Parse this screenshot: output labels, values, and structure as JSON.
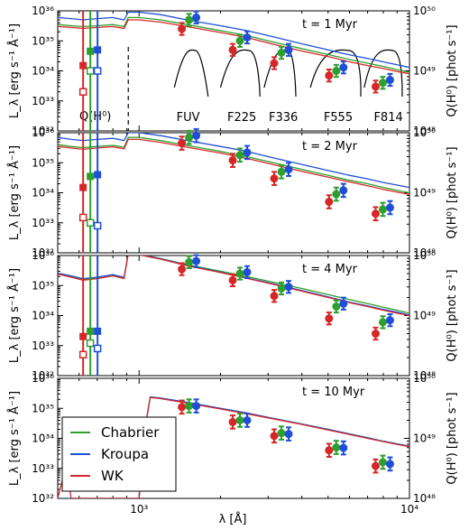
{
  "chart_data": {
    "type": "line",
    "x_scale": "log",
    "y_scale": "log",
    "xlim": [
      500,
      10000
    ],
    "ylim": [
      1e+32,
      1e+36
    ],
    "right_ylim": [
      1e+48,
      1e+50
    ],
    "xlabel": "λ [Å]",
    "ylabel": "L_λ [erg s⁻¹ Å⁻¹]",
    "right_ylabel": "Q(H⁰) [phot s⁻¹]",
    "x_tick_labels": [
      "10³",
      "10⁴"
    ],
    "y_tick_labels": [
      "10³²",
      "10³³",
      "10³⁴",
      "10³⁵",
      "10³⁶"
    ],
    "right_tick_labels": [
      "10⁴⁸",
      "10⁴⁹",
      "10⁵⁰"
    ],
    "colors": {
      "Chabrier": "#2ca02c",
      "Kroupa": "#1f4fd6",
      "WK": "#d62728"
    },
    "legend": {
      "placement": "lower-left",
      "entries": [
        "Chabrier",
        "Kroupa",
        "WK"
      ]
    },
    "qh_label": "Q(H⁰)",
    "band_names": [
      "FUV",
      "F225",
      "F336",
      "F555",
      "F814"
    ],
    "band_centers": [
      1530,
      2360,
      3360,
      5360,
      7970
    ],
    "lyman_limit": 912,
    "panels": [
      {
        "title": "t = 1 Myr",
        "show_bands": true,
        "spectra": [
          {
            "name": "Chabrier",
            "x": [
              500,
              560,
              620,
              700,
              800,
              880,
              912,
              1000,
              1200,
              1500,
              2000,
              2500,
              3000,
              4000,
              5000,
              6000,
              7000,
              8000,
              9000,
              10000
            ],
            "y": [
              3.5e+35,
              3.2e+35,
              3e+35,
              3.2e+35,
              3.5e+35,
              3e+35,
              6e+35,
              6e+35,
              5e+35,
              3.5e+35,
              2.2e+35,
              1.5e+35,
              1e+35,
              5.5e+34,
              3.5e+34,
              2.4e+34,
              1.8e+34,
              1.4e+34,
              1.1e+34,
              9e+33
            ]
          },
          {
            "name": "Kroupa",
            "x": [
              500,
              560,
              620,
              700,
              800,
              880,
              912,
              1000,
              1200,
              1500,
              2000,
              2500,
              3000,
              4000,
              5000,
              6000,
              7000,
              8000,
              9000,
              10000
            ],
            "y": [
              6e+35,
              5.5e+35,
              5e+35,
              5.5e+35,
              6e+35,
              5e+35,
              9e+35,
              9e+35,
              7.5e+35,
              5e+35,
              3.2e+35,
              2.2e+35,
              1.5e+35,
              8e+34,
              5e+34,
              3.4e+34,
              2.6e+34,
              2e+34,
              1.6e+34,
              1.3e+34
            ]
          },
          {
            "name": "WK",
            "x": [
              500,
              560,
              620,
              700,
              800,
              880,
              912,
              1000,
              1200,
              1500,
              2000,
              2500,
              3000,
              4000,
              5000,
              6000,
              7000,
              8000,
              9000,
              10000
            ],
            "y": [
              3e+35,
              2.8e+35,
              2.6e+35,
              2.8e+35,
              3e+35,
              2.6e+35,
              5e+35,
              5e+35,
              4.2e+35,
              3e+35,
              1.9e+35,
              1.3e+35,
              8.5e+34,
              4.6e+34,
              3e+34,
              2e+34,
              1.5e+34,
              1.2e+34,
              9.5e+33,
              8e+33
            ]
          }
        ],
        "band_points": [
          {
            "name": "WK",
            "y": [
              2.5e+35,
              5e+34,
              1.8e+34,
              7e+33,
              3e+33
            ],
            "err": [
              0.2,
              0.2,
              0.2,
              0.2,
              0.2
            ]
          },
          {
            "name": "Chabrier",
            "y": [
              5e+35,
              1e+35,
              4e+34,
              1e+34,
              4e+33
            ],
            "err": [
              0.2,
              0.2,
              0.2,
              0.2,
              0.2
            ]
          },
          {
            "name": "Kroupa",
            "y": [
              6e+35,
              1.3e+35,
              5e+34,
              1.3e+34,
              5e+33
            ],
            "err": [
              0.2,
              0.2,
              0.2,
              0.2,
              0.2
            ]
          }
        ],
        "q_points": [
          {
            "name": "WK",
            "filled": 1.5e+34,
            "open": 2e+33,
            "err_lo": 1e+32,
            "err_hi": 1e+36
          },
          {
            "name": "Chabrier",
            "filled": 4.5e+34,
            "open": 1e+34,
            "err_lo": 1e+32,
            "err_hi": 1e+36
          },
          {
            "name": "Kroupa",
            "filled": 5e+34,
            "open": 1e+34,
            "err_lo": 1e+32,
            "err_hi": 1e+36
          }
        ]
      },
      {
        "title": "t = 2 Myr",
        "show_bands": false,
        "spectra": [
          {
            "name": "Chabrier",
            "x": [
              500,
              560,
              620,
              700,
              800,
              880,
              912,
              1000,
              1200,
              1500,
              2000,
              2500,
              3000,
              4000,
              5000,
              6000,
              7000,
              8000,
              9000,
              10000
            ],
            "y": [
              4e+35,
              3.5e+35,
              3.2e+35,
              3.5e+35,
              3.8e+35,
              3.3e+35,
              7e+35,
              7e+35,
              5.5e+35,
              3.8e+35,
              2.4e+35,
              1.6e+35,
              1.1e+35,
              6e+34,
              3.8e+34,
              2.6e+34,
              2e+34,
              1.5e+34,
              1.2e+34,
              1e+34
            ]
          },
          {
            "name": "Kroupa",
            "x": [
              500,
              560,
              620,
              700,
              800,
              880,
              912,
              1000,
              1200,
              1500,
              2000,
              2500,
              3000,
              4000,
              5000,
              6000,
              7000,
              8000,
              9000,
              10000
            ],
            "y": [
              7e+35,
              6e+35,
              5.5e+35,
              6e+35,
              6.5e+35,
              5.5e+35,
              1e+36,
              1e+36,
              8e+35,
              5.5e+35,
              3.5e+35,
              2.4e+35,
              1.6e+35,
              8.8e+34,
              5.5e+34,
              3.8e+34,
              2.9e+34,
              2.2e+34,
              1.8e+34,
              1.5e+34
            ]
          },
          {
            "name": "WK",
            "x": [
              500,
              560,
              620,
              700,
              800,
              880,
              912,
              1000,
              1200,
              1500,
              2000,
              2500,
              3000,
              4000,
              5000,
              6000,
              7000,
              8000,
              9000,
              10000
            ],
            "y": [
              3.5e+35,
              3.1e+35,
              2.8e+35,
              3.1e+35,
              3.4e+35,
              2.9e+35,
              6e+35,
              6e+35,
              4.8e+35,
              3.3e+35,
              2.1e+35,
              1.4e+35,
              9.5e+34,
              5.2e+34,
              3.3e+34,
              2.3e+34,
              1.7e+34,
              1.3e+34,
              1.05e+34,
              8.8e+33
            ]
          }
        ],
        "band_points": [
          {
            "name": "WK",
            "y": [
              4.5e+35,
              1.2e+35,
              3e+34,
              5e+33,
              2e+33
            ],
            "err": [
              0.22,
              0.22,
              0.22,
              0.22,
              0.22
            ]
          },
          {
            "name": "Chabrier",
            "y": [
              7e+35,
              1.8e+35,
              5e+34,
              9e+33,
              2.8e+33
            ],
            "err": [
              0.22,
              0.22,
              0.22,
              0.22,
              0.22
            ]
          },
          {
            "name": "Kroupa",
            "y": [
              8e+35,
              2.2e+35,
              6e+34,
              1.2e+34,
              3.2e+33
            ],
            "err": [
              0.22,
              0.22,
              0.22,
              0.22,
              0.22
            ]
          }
        ],
        "q_points": [
          {
            "name": "WK",
            "filled": 1.5e+34,
            "open": 1.5e+33,
            "err_lo": 1e+32,
            "err_hi": 1e+36
          },
          {
            "name": "Chabrier",
            "filled": 3.5e+34,
            "open": 1e+33,
            "err_lo": 1e+32,
            "err_hi": 1e+36
          },
          {
            "name": "Kroupa",
            "filled": 4e+34,
            "open": 8e+32,
            "err_lo": 1e+32,
            "err_hi": 1e+36
          }
        ]
      },
      {
        "title": "t = 4 Myr",
        "show_bands": false,
        "spectra": [
          {
            "name": "Chabrier",
            "x": [
              500,
              560,
              620,
              700,
              800,
              880,
              912,
              1000,
              1200,
              1500,
              2000,
              2500,
              3000,
              4000,
              5000,
              6000,
              7000,
              8000,
              9000,
              10000
            ],
            "y": [
              2.5e+35,
              2e+35,
              1.6e+35,
              1.8e+35,
              2.2e+35,
              1.8e+35,
              1.2e+36,
              1.1e+36,
              8e+35,
              5e+35,
              3e+35,
              2e+35,
              1.4e+35,
              8e+34,
              5e+34,
              3.4e+34,
              2.5e+34,
              1.9e+34,
              1.5e+34,
              1.2e+34
            ]
          },
          {
            "name": "Kroupa",
            "x": [
              500,
              560,
              620,
              700,
              800,
              880,
              912,
              1000,
              1200,
              1500,
              2000,
              2500,
              3000,
              4000,
              5000,
              6000,
              7000,
              8000,
              9000,
              10000
            ],
            "y": [
              2.6e+35,
              2.1e+35,
              1.7e+35,
              1.9e+35,
              2.3e+35,
              1.9e+35,
              1.2e+36,
              1.1e+36,
              7.8e+35,
              4.8e+35,
              2.8e+35,
              1.8e+35,
              1.25e+35,
              6.8e+34,
              4.2e+34,
              2.8e+34,
              2.1e+34,
              1.6e+34,
              1.3e+34,
              1.05e+34
            ]
          },
          {
            "name": "WK",
            "x": [
              500,
              560,
              620,
              700,
              800,
              880,
              912,
              1000,
              1200,
              1500,
              2000,
              2500,
              3000,
              4000,
              5000,
              6000,
              7000,
              8000,
              9000,
              10000
            ],
            "y": [
              2.4e+35,
              1.9e+35,
              1.5e+35,
              1.7e+35,
              2.1e+35,
              1.7e+35,
              1.15e+36,
              1.05e+36,
              7.6e+35,
              4.6e+35,
              2.7e+35,
              1.75e+35,
              1.2e+35,
              6.5e+34,
              4e+34,
              2.7e+34,
              2e+34,
              1.5e+34,
              1.2e+34,
              1e+34
            ]
          }
        ],
        "band_points": [
          {
            "name": "WK",
            "y": [
              3.5e+35,
              1.5e+35,
              4.5e+34,
              8e+33,
              2.5e+33
            ],
            "err": [
              0.2,
              0.2,
              0.2,
              0.2,
              0.2
            ]
          },
          {
            "name": "Chabrier",
            "y": [
              6e+35,
              2.5e+35,
              8e+34,
              2e+34,
              6e+33
            ],
            "err": [
              0.2,
              0.2,
              0.2,
              0.2,
              0.2
            ]
          },
          {
            "name": "Kroupa",
            "y": [
              6.5e+35,
              2.8e+35,
              9e+34,
              2.5e+34,
              7e+33
            ],
            "err": [
              0.2,
              0.2,
              0.2,
              0.2,
              0.2
            ]
          }
        ],
        "q_points": [
          {
            "name": "WK",
            "filled": 2e+33,
            "open": 5e+32,
            "err_lo": 1e+32,
            "err_hi": 1e+36
          },
          {
            "name": "Chabrier",
            "filled": 3e+33,
            "open": 1.2e+33,
            "err_lo": 1e+32,
            "err_hi": 1e+36
          },
          {
            "name": "Kroupa",
            "filled": 3e+33,
            "open": 8e+32,
            "err_lo": 1e+32,
            "err_hi": 1e+36
          }
        ]
      },
      {
        "title": "t = 10 Myr",
        "show_bands": false,
        "spectra": [
          {
            "name": "Chabrier",
            "x": [
              500,
              650,
              800,
              912,
              1000,
              1050,
              1100,
              1200,
              1500,
              2000,
              2500,
              3000,
              4000,
              5000,
              6000,
              7000,
              8000,
              9000,
              10000
            ],
            "y": [
              1e+32,
              1e+32,
              1e+32,
              1e+32,
              1e+32,
              2e+34,
              2.4e+35,
              2.2e+35,
              1.6e+35,
              1e+35,
              7e+34,
              5e+34,
              3e+34,
              2e+34,
              1.4e+34,
              1.05e+34,
              8e+33,
              6.5e+33,
              5.5e+33
            ]
          },
          {
            "name": "Kroupa",
            "x": [
              500,
              650,
              800,
              912,
              1000,
              1050,
              1100,
              1200,
              1500,
              2000,
              2500,
              3000,
              4000,
              5000,
              6000,
              7000,
              8000,
              9000,
              10000
            ],
            "y": [
              1e+32,
              1e+32,
              1e+32,
              1e+32,
              1e+32,
              2e+34,
              2.4e+35,
              2.2e+35,
              1.6e+35,
              1e+35,
              7e+34,
              5e+34,
              3e+34,
              2e+34,
              1.4e+34,
              1.05e+34,
              8e+33,
              6.5e+33,
              5.5e+33
            ]
          },
          {
            "name": "WK",
            "x": [
              500,
              520,
              540,
              560,
              650,
              800,
              912,
              1000,
              1050,
              1100,
              1200,
              1500,
              2000,
              2500,
              3000,
              4000,
              5000,
              6000,
              7000,
              8000,
              9000,
              10000
            ],
            "y": [
              1e+32,
              4e+32,
              1e+33,
              1e+32,
              1e+32,
              1e+32,
              1e+32,
              1e+32,
              2e+34,
              2.3e+35,
              2.1e+35,
              1.5e+35,
              9.5e+34,
              6.6e+34,
              4.8e+34,
              2.9e+34,
              1.9e+34,
              1.35e+34,
              1e+34,
              7.8e+33,
              6.3e+33,
              5.3e+33
            ]
          }
        ],
        "band_points": [
          {
            "name": "WK",
            "y": [
              1.1e+35,
              3.5e+34,
              1.2e+34,
              4e+33,
              1.2e+33
            ],
            "err": [
              0.22,
              0.22,
              0.22,
              0.22,
              0.22
            ]
          },
          {
            "name": "Chabrier",
            "y": [
              1.2e+35,
              4e+34,
              1.5e+34,
              5e+33,
              1.6e+33
            ],
            "err": [
              0.22,
              0.22,
              0.22,
              0.22,
              0.22
            ]
          },
          {
            "name": "Kroupa",
            "y": [
              1.2e+35,
              4e+34,
              1.4e+34,
              4.8e+33,
              1.4e+33
            ],
            "err": [
              0.22,
              0.22,
              0.22,
              0.22,
              0.22
            ]
          }
        ],
        "q_points": []
      }
    ]
  }
}
